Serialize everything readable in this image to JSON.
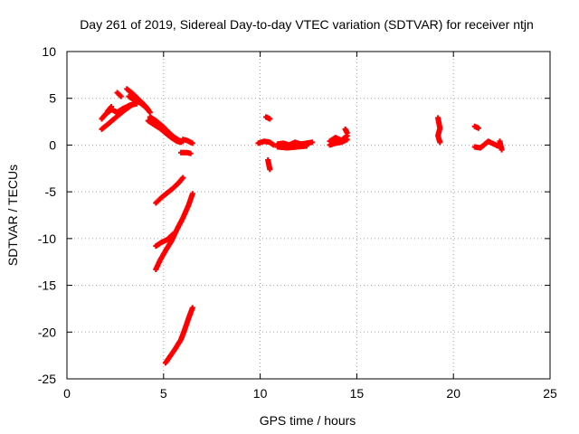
{
  "chart_data": {
    "type": "scatter",
    "title": "Day 261 of 2019, Sidereal Day-to-day VTEC variation (SDTVAR) for receiver ntjn",
    "xlabel": "GPS time / hours",
    "ylabel": "SDTVAR / TECUs",
    "xlim": [
      0,
      25
    ],
    "ylim": [
      -25,
      10
    ],
    "xticks": [
      0,
      5,
      10,
      15,
      20,
      25
    ],
    "yticks": [
      -25,
      -20,
      -15,
      -10,
      -5,
      0,
      5,
      10
    ],
    "grid": true,
    "marker": "+",
    "color": "#ff0000",
    "segments": [
      {
        "name": "rise-a",
        "points": [
          [
            1.8,
            1.7
          ],
          [
            2.1,
            2.2
          ],
          [
            2.5,
            2.9
          ],
          [
            2.9,
            3.6
          ],
          [
            3.3,
            4.2
          ],
          [
            3.6,
            4.6
          ]
        ]
      },
      {
        "name": "rise-b",
        "points": [
          [
            1.8,
            2.8
          ],
          [
            2.0,
            3.3
          ],
          [
            2.3,
            3.8
          ],
          [
            2.6,
            3.5
          ],
          [
            2.9,
            3.9
          ],
          [
            3.3,
            4.3
          ],
          [
            3.6,
            4.4
          ]
        ]
      },
      {
        "name": "rise-c",
        "points": [
          [
            2.1,
            3.6
          ],
          [
            2.3,
            4.1
          ]
        ]
      },
      {
        "name": "rise-d",
        "points": [
          [
            2.6,
            5.6
          ],
          [
            2.8,
            5.2
          ]
        ]
      },
      {
        "name": "peak-a",
        "points": [
          [
            3.1,
            6.0
          ],
          [
            3.4,
            5.5
          ],
          [
            3.7,
            4.9
          ],
          [
            4.0,
            4.3
          ],
          [
            4.2,
            3.8
          ]
        ]
      },
      {
        "name": "peak-b",
        "points": [
          [
            3.2,
            5.2
          ],
          [
            3.5,
            4.8
          ],
          [
            3.8,
            4.5
          ],
          [
            4.1,
            4.0
          ],
          [
            4.3,
            3.5
          ]
        ]
      },
      {
        "name": "decay",
        "points": [
          [
            4.3,
            3.0
          ],
          [
            4.6,
            2.6
          ],
          [
            4.9,
            2.1
          ],
          [
            5.2,
            1.5
          ],
          [
            5.5,
            0.9
          ],
          [
            5.8,
            0.5
          ],
          [
            6.0,
            0.4
          ]
        ]
      },
      {
        "name": "decay-b",
        "points": [
          [
            4.2,
            2.6
          ],
          [
            4.5,
            2.2
          ],
          [
            4.8,
            1.8
          ],
          [
            5.1,
            1.3
          ],
          [
            5.4,
            0.8
          ],
          [
            5.7,
            0.4
          ],
          [
            5.9,
            0.3
          ]
        ]
      },
      {
        "name": "tail",
        "points": [
          [
            6.0,
            0.6
          ],
          [
            6.2,
            0.5
          ],
          [
            6.5,
            0.2
          ]
        ]
      },
      {
        "name": "tail-b",
        "points": [
          [
            5.9,
            -0.8
          ],
          [
            6.2,
            -0.8
          ],
          [
            6.4,
            -0.9
          ]
        ]
      },
      {
        "name": "track-1",
        "points": [
          [
            4.6,
            -6.2
          ],
          [
            4.9,
            -5.6
          ],
          [
            5.2,
            -5.1
          ],
          [
            5.5,
            -4.6
          ],
          [
            5.8,
            -4.0
          ],
          [
            6.0,
            -3.5
          ]
        ]
      },
      {
        "name": "track-2a",
        "points": [
          [
            4.6,
            -10.8
          ],
          [
            4.9,
            -10.4
          ],
          [
            5.2,
            -10.1
          ],
          [
            5.5,
            -9.5
          ]
        ]
      },
      {
        "name": "track-2b",
        "points": [
          [
            4.6,
            -13.3
          ],
          [
            4.8,
            -12.4
          ],
          [
            5.1,
            -11.3
          ],
          [
            5.4,
            -10.3
          ],
          [
            5.7,
            -9.0
          ],
          [
            6.0,
            -7.8
          ],
          [
            6.3,
            -6.4
          ],
          [
            6.5,
            -5.2
          ]
        ]
      },
      {
        "name": "track-3",
        "points": [
          [
            5.1,
            -23.3
          ],
          [
            5.3,
            -22.7
          ],
          [
            5.6,
            -21.8
          ],
          [
            5.9,
            -20.8
          ],
          [
            6.1,
            -19.7
          ],
          [
            6.3,
            -18.5
          ],
          [
            6.5,
            -17.4
          ]
        ]
      },
      {
        "name": "mid-a",
        "points": [
          [
            9.9,
            0.2
          ],
          [
            10.2,
            0.4
          ],
          [
            10.5,
            0.3
          ],
          [
            10.7,
            0.0
          ]
        ]
      },
      {
        "name": "mid-b",
        "points": [
          [
            10.3,
            3.0
          ],
          [
            10.5,
            2.8
          ]
        ]
      },
      {
        "name": "mid-c",
        "points": [
          [
            10.4,
            -1.6
          ],
          [
            10.5,
            -2.6
          ]
        ]
      },
      {
        "name": "mid-d",
        "points": [
          [
            10.9,
            0.1
          ],
          [
            11.2,
            0.2
          ],
          [
            11.5,
            0.0
          ],
          [
            11.8,
            0.3
          ],
          [
            12.1,
            0.1
          ],
          [
            12.4,
            0.2
          ],
          [
            12.7,
            0.3
          ]
        ]
      },
      {
        "name": "mid-e",
        "points": [
          [
            10.9,
            -0.2
          ],
          [
            11.4,
            -0.3
          ],
          [
            11.9,
            -0.2
          ],
          [
            12.4,
            -0.1
          ]
        ]
      },
      {
        "name": "mid-f",
        "points": [
          [
            13.6,
            0.4
          ],
          [
            13.9,
            0.8
          ],
          [
            14.2,
            0.5
          ],
          [
            14.5,
            1.0
          ]
        ]
      },
      {
        "name": "mid-g",
        "points": [
          [
            13.6,
            0.0
          ],
          [
            13.9,
            0.2
          ],
          [
            14.2,
            0.3
          ],
          [
            14.5,
            0.6
          ]
        ]
      },
      {
        "name": "mid-h",
        "points": [
          [
            14.4,
            1.7
          ],
          [
            14.5,
            1.3
          ]
        ]
      },
      {
        "name": "late-a",
        "points": [
          [
            19.2,
            2.9
          ],
          [
            19.3,
            1.8
          ],
          [
            19.2,
            1.0
          ],
          [
            19.3,
            0.3
          ]
        ]
      },
      {
        "name": "late-b",
        "points": [
          [
            21.1,
            2.0
          ],
          [
            21.3,
            1.8
          ]
        ]
      },
      {
        "name": "late-c",
        "points": [
          [
            21.1,
            -0.2
          ],
          [
            21.4,
            -0.3
          ],
          [
            21.8,
            0.4
          ],
          [
            22.3,
            -0.1
          ]
        ]
      },
      {
        "name": "late-d",
        "points": [
          [
            22.4,
            0.4
          ],
          [
            22.5,
            -0.5
          ]
        ]
      }
    ]
  }
}
